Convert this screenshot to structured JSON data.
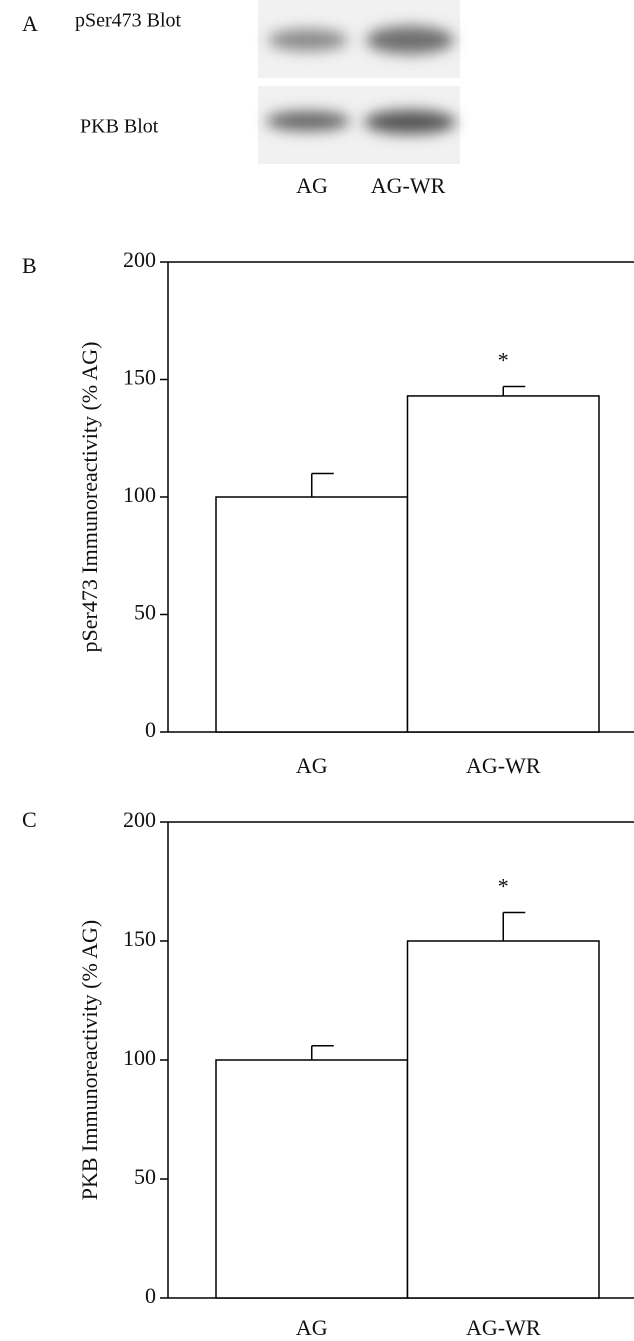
{
  "panel_a": {
    "label": "A",
    "blot_labels": [
      "pSer473 Blot",
      "PKB Blot"
    ],
    "lanes": [
      "AG",
      "AG-WR"
    ]
  },
  "chart_data": [
    {
      "type": "bar",
      "panel_label": "B",
      "ylabel": "pSer473 Immunoreactivity (% AG)",
      "categories": [
        "AG",
        "AG-WR"
      ],
      "values": [
        100,
        143
      ],
      "errors": [
        10,
        4
      ],
      "significance": [
        null,
        "*"
      ],
      "color": "#ffffff",
      "ylim": [
        0,
        200
      ],
      "yticks": [
        0,
        50,
        100,
        150,
        200
      ]
    },
    {
      "type": "bar",
      "panel_label": "C",
      "ylabel": "PKB Immunoreactivity (% AG)",
      "categories": [
        "AG",
        "AG-WR"
      ],
      "values": [
        100,
        150
      ],
      "errors": [
        6,
        12
      ],
      "significance": [
        null,
        "*"
      ],
      "color": "#ffffff",
      "ylim": [
        0,
        200
      ],
      "yticks": [
        0,
        50,
        100,
        150,
        200
      ]
    }
  ]
}
